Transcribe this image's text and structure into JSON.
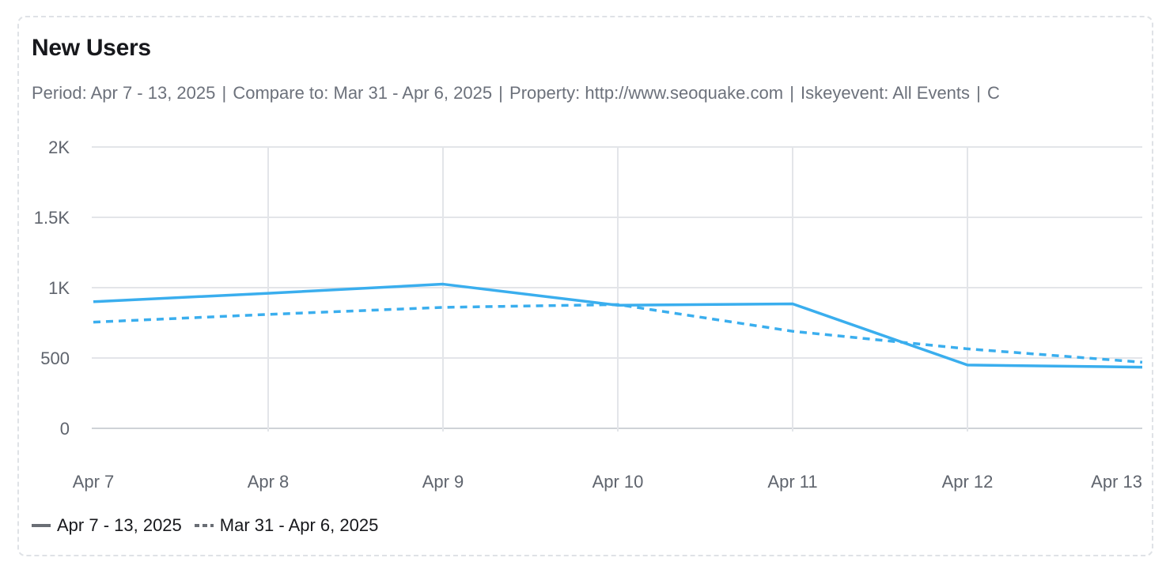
{
  "widget": {
    "title": "New Users",
    "subtitle": [
      "Period: Apr 7 - 13, 2025",
      "Compare to: Mar 31 - Apr 6, 2025",
      "Property: http://www.seoquake.com",
      "Iskeyevent: All Events",
      "C"
    ]
  },
  "colors": {
    "line": "#3aaeee",
    "grid": "#e3e5e9",
    "legend_swatch": "#6a6e75"
  },
  "chart_data": {
    "type": "line",
    "title": "New Users",
    "categories": [
      "Apr 7",
      "Apr 8",
      "Apr 9",
      "Apr 10",
      "Apr 11",
      "Apr 12",
      "Apr 13"
    ],
    "yticks": [
      "0",
      "500",
      "1K",
      "1.5K",
      "2K"
    ],
    "ylim": [
      0,
      2000
    ],
    "grid": true,
    "legend_position": "bottom-left",
    "series": [
      {
        "name": "Apr 7 - 13, 2025",
        "style": "solid",
        "values": [
          900,
          960,
          1025,
          875,
          885,
          450,
          435
        ]
      },
      {
        "name": "Mar 31 - Apr 6, 2025",
        "style": "dashed",
        "values": [
          755,
          810,
          860,
          880,
          690,
          565,
          470
        ]
      }
    ]
  }
}
